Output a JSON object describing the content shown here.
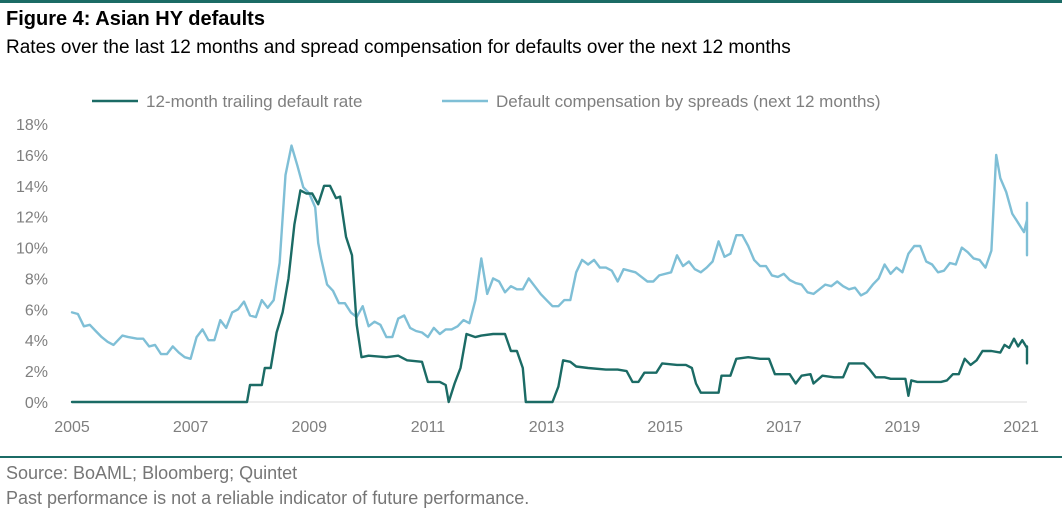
{
  "header": {
    "title": "Figure 4: Asian HY defaults",
    "subtitle": "Rates over the last 12 months and spread compensation for defaults over the next 12 months"
  },
  "footer": {
    "source": "Source: BoAML; Bloomberg; Quintet",
    "disclaimer": "Past performance is not a reliable indicator of future performance."
  },
  "colors": {
    "rule": "#1b6b65",
    "default_rate": "#1b6b65",
    "compensation": "#7fbfd6",
    "axis_text": "#7f7f7f",
    "baseline": "#d9d9d9"
  },
  "chart_data": {
    "type": "line",
    "xlim": [
      2005,
      2021.1
    ],
    "ylim": [
      0,
      18
    ],
    "x_ticks": [
      2005,
      2007,
      2009,
      2011,
      2013,
      2015,
      2017,
      2019,
      2021
    ],
    "x_tick_labels": [
      "2005",
      "2007",
      "2009",
      "2011",
      "2013",
      "2015",
      "2017",
      "2019",
      "2021"
    ],
    "y_ticks": [
      0,
      2,
      4,
      6,
      8,
      10,
      12,
      14,
      16,
      18
    ],
    "y_tick_labels": [
      "0%",
      "2%",
      "4%",
      "6%",
      "8%",
      "10%",
      "12%",
      "14%",
      "16%",
      "18%"
    ],
    "grid": false,
    "legend_position": "top",
    "series": [
      {
        "name": "12-month trailing default rate",
        "color": "#1b6b65",
        "points": [
          [
            2005.0,
            0
          ],
          [
            2007.95,
            0
          ],
          [
            2008.0,
            1.1
          ],
          [
            2008.2,
            1.1
          ],
          [
            2008.25,
            2.2
          ],
          [
            2008.35,
            2.2
          ],
          [
            2008.45,
            4.5
          ],
          [
            2008.55,
            5.8
          ],
          [
            2008.65,
            8.0
          ],
          [
            2008.75,
            11.5
          ],
          [
            2008.85,
            13.7
          ],
          [
            2008.95,
            13.5
          ],
          [
            2009.05,
            13.5
          ],
          [
            2009.15,
            12.8
          ],
          [
            2009.25,
            14.0
          ],
          [
            2009.35,
            14.0
          ],
          [
            2009.45,
            13.2
          ],
          [
            2009.52,
            13.3
          ],
          [
            2009.62,
            10.7
          ],
          [
            2009.72,
            9.5
          ],
          [
            2009.8,
            5.0
          ],
          [
            2009.88,
            2.9
          ],
          [
            2010.0,
            3.0
          ],
          [
            2010.3,
            2.9
          ],
          [
            2010.5,
            3.0
          ],
          [
            2010.65,
            2.7
          ],
          [
            2010.9,
            2.6
          ],
          [
            2011.0,
            1.3
          ],
          [
            2011.2,
            1.3
          ],
          [
            2011.3,
            1.1
          ],
          [
            2011.35,
            0
          ],
          [
            2011.45,
            1.2
          ],
          [
            2011.55,
            2.2
          ],
          [
            2011.65,
            4.4
          ],
          [
            2011.8,
            4.2
          ],
          [
            2011.9,
            4.3
          ],
          [
            2012.1,
            4.4
          ],
          [
            2012.3,
            4.4
          ],
          [
            2012.4,
            3.3
          ],
          [
            2012.5,
            3.3
          ],
          [
            2012.6,
            2.2
          ],
          [
            2012.65,
            0
          ],
          [
            2013.0,
            0
          ],
          [
            2013.1,
            0
          ],
          [
            2013.2,
            1.0
          ],
          [
            2013.28,
            2.7
          ],
          [
            2013.4,
            2.6
          ],
          [
            2013.5,
            2.3
          ],
          [
            2013.7,
            2.2
          ],
          [
            2014.0,
            2.1
          ],
          [
            2014.2,
            2.1
          ],
          [
            2014.35,
            2.0
          ],
          [
            2014.45,
            1.3
          ],
          [
            2014.55,
            1.3
          ],
          [
            2014.65,
            1.9
          ],
          [
            2014.85,
            1.9
          ],
          [
            2014.95,
            2.5
          ],
          [
            2015.2,
            2.4
          ],
          [
            2015.35,
            2.4
          ],
          [
            2015.45,
            2.2
          ],
          [
            2015.52,
            1.2
          ],
          [
            2015.6,
            0.6
          ],
          [
            2015.75,
            0.6
          ],
          [
            2015.9,
            0.6
          ],
          [
            2015.95,
            1.7
          ],
          [
            2016.1,
            1.7
          ],
          [
            2016.2,
            2.8
          ],
          [
            2016.4,
            2.9
          ],
          [
            2016.6,
            2.8
          ],
          [
            2016.75,
            2.8
          ],
          [
            2016.85,
            1.8
          ],
          [
            2017.0,
            1.8
          ],
          [
            2017.1,
            1.8
          ],
          [
            2017.2,
            1.2
          ],
          [
            2017.3,
            1.7
          ],
          [
            2017.45,
            1.8
          ],
          [
            2017.5,
            1.2
          ],
          [
            2017.65,
            1.7
          ],
          [
            2017.85,
            1.6
          ],
          [
            2018.0,
            1.6
          ],
          [
            2018.1,
            2.5
          ],
          [
            2018.25,
            2.5
          ],
          [
            2018.35,
            2.5
          ],
          [
            2018.45,
            2.1
          ],
          [
            2018.55,
            1.6
          ],
          [
            2018.7,
            1.6
          ],
          [
            2018.8,
            1.5
          ],
          [
            2018.95,
            1.5
          ],
          [
            2019.05,
            1.5
          ],
          [
            2019.1,
            0.4
          ],
          [
            2019.15,
            1.4
          ],
          [
            2019.25,
            1.3
          ],
          [
            2019.5,
            1.3
          ],
          [
            2019.65,
            1.3
          ],
          [
            2019.75,
            1.4
          ],
          [
            2019.85,
            1.8
          ],
          [
            2019.95,
            1.8
          ],
          [
            2020.05,
            2.8
          ],
          [
            2020.15,
            2.4
          ],
          [
            2020.25,
            2.7
          ],
          [
            2020.35,
            3.3
          ],
          [
            2020.5,
            3.3
          ],
          [
            2020.65,
            3.2
          ],
          [
            2020.72,
            3.7
          ],
          [
            2020.8,
            3.5
          ],
          [
            2020.88,
            4.1
          ],
          [
            2020.95,
            3.6
          ],
          [
            2021.02,
            4.0
          ],
          [
            2021.1,
            3.5
          ],
          [
            2021.2,
            3.6
          ],
          [
            2021.3,
            3.6
          ],
          [
            2021.4,
            2.6
          ],
          [
            2021.5,
            2.5
          ],
          [
            2021.58,
            2.5
          ]
        ]
      },
      {
        "name": "Default compensation by spreads (next 12 months)",
        "color": "#7fbfd6",
        "points": [
          [
            2005.0,
            5.8
          ],
          [
            2005.1,
            5.7
          ],
          [
            2005.2,
            4.9
          ],
          [
            2005.3,
            5.0
          ],
          [
            2005.4,
            4.6
          ],
          [
            2005.5,
            4.2
          ],
          [
            2005.6,
            3.9
          ],
          [
            2005.7,
            3.7
          ],
          [
            2005.85,
            4.3
          ],
          [
            2005.95,
            4.2
          ],
          [
            2006.1,
            4.1
          ],
          [
            2006.2,
            4.1
          ],
          [
            2006.3,
            3.6
          ],
          [
            2006.4,
            3.7
          ],
          [
            2006.5,
            3.1
          ],
          [
            2006.6,
            3.1
          ],
          [
            2006.7,
            3.6
          ],
          [
            2006.8,
            3.2
          ],
          [
            2006.9,
            2.9
          ],
          [
            2007.0,
            2.8
          ],
          [
            2007.1,
            4.2
          ],
          [
            2007.2,
            4.7
          ],
          [
            2007.3,
            4.0
          ],
          [
            2007.4,
            4.0
          ],
          [
            2007.5,
            5.3
          ],
          [
            2007.6,
            4.8
          ],
          [
            2007.7,
            5.8
          ],
          [
            2007.8,
            6.0
          ],
          [
            2007.9,
            6.5
          ],
          [
            2008.0,
            5.6
          ],
          [
            2008.1,
            5.5
          ],
          [
            2008.2,
            6.6
          ],
          [
            2008.3,
            6.1
          ],
          [
            2008.4,
            6.6
          ],
          [
            2008.5,
            9.0
          ],
          [
            2008.6,
            14.7
          ],
          [
            2008.7,
            16.6
          ],
          [
            2008.8,
            15.3
          ],
          [
            2008.9,
            13.9
          ],
          [
            2009.0,
            13.5
          ],
          [
            2009.1,
            12.6
          ],
          [
            2009.15,
            10.3
          ],
          [
            2009.2,
            9.3
          ],
          [
            2009.3,
            7.6
          ],
          [
            2009.4,
            7.2
          ],
          [
            2009.5,
            6.4
          ],
          [
            2009.6,
            6.4
          ],
          [
            2009.7,
            5.8
          ],
          [
            2009.8,
            5.5
          ],
          [
            2009.9,
            6.2
          ],
          [
            2010.0,
            4.9
          ],
          [
            2010.1,
            5.2
          ],
          [
            2010.2,
            5.0
          ],
          [
            2010.3,
            4.2
          ],
          [
            2010.4,
            4.2
          ],
          [
            2010.5,
            5.4
          ],
          [
            2010.6,
            5.6
          ],
          [
            2010.7,
            4.8
          ],
          [
            2010.8,
            4.6
          ],
          [
            2010.9,
            4.5
          ],
          [
            2011.0,
            4.2
          ],
          [
            2011.1,
            4.8
          ],
          [
            2011.2,
            4.4
          ],
          [
            2011.3,
            4.7
          ],
          [
            2011.4,
            4.7
          ],
          [
            2011.5,
            4.9
          ],
          [
            2011.6,
            5.3
          ],
          [
            2011.7,
            5.1
          ],
          [
            2011.8,
            6.6
          ],
          [
            2011.9,
            9.3
          ],
          [
            2012.0,
            7.0
          ],
          [
            2012.1,
            8.0
          ],
          [
            2012.2,
            7.8
          ],
          [
            2012.3,
            7.1
          ],
          [
            2012.4,
            7.5
          ],
          [
            2012.5,
            7.3
          ],
          [
            2012.6,
            7.3
          ],
          [
            2012.7,
            8.0
          ],
          [
            2012.8,
            7.5
          ],
          [
            2012.9,
            7.0
          ],
          [
            2013.0,
            6.6
          ],
          [
            2013.1,
            6.2
          ],
          [
            2013.2,
            6.2
          ],
          [
            2013.3,
            6.6
          ],
          [
            2013.4,
            6.6
          ],
          [
            2013.5,
            8.4
          ],
          [
            2013.6,
            9.2
          ],
          [
            2013.7,
            8.9
          ],
          [
            2013.8,
            9.2
          ],
          [
            2013.9,
            8.7
          ],
          [
            2014.0,
            8.7
          ],
          [
            2014.1,
            8.5
          ],
          [
            2014.2,
            7.8
          ],
          [
            2014.3,
            8.6
          ],
          [
            2014.5,
            8.4
          ],
          [
            2014.7,
            7.8
          ],
          [
            2014.8,
            7.8
          ],
          [
            2014.9,
            8.2
          ],
          [
            2015.1,
            8.4
          ],
          [
            2015.2,
            9.5
          ],
          [
            2015.3,
            8.8
          ],
          [
            2015.4,
            9.1
          ],
          [
            2015.5,
            8.6
          ],
          [
            2015.6,
            8.4
          ],
          [
            2015.7,
            8.7
          ],
          [
            2015.8,
            9.1
          ],
          [
            2015.9,
            10.4
          ],
          [
            2016.0,
            9.4
          ],
          [
            2016.1,
            9.6
          ],
          [
            2016.2,
            10.8
          ],
          [
            2016.3,
            10.8
          ],
          [
            2016.4,
            10.1
          ],
          [
            2016.5,
            9.2
          ],
          [
            2016.6,
            8.8
          ],
          [
            2016.7,
            8.8
          ],
          [
            2016.8,
            8.2
          ],
          [
            2016.9,
            8.1
          ],
          [
            2017.0,
            8.3
          ],
          [
            2017.1,
            7.9
          ],
          [
            2017.2,
            7.7
          ],
          [
            2017.3,
            7.6
          ],
          [
            2017.4,
            7.1
          ],
          [
            2017.5,
            7.0
          ],
          [
            2017.6,
            7.3
          ],
          [
            2017.7,
            7.6
          ],
          [
            2017.8,
            7.5
          ],
          [
            2017.9,
            7.8
          ],
          [
            2018.0,
            7.5
          ],
          [
            2018.1,
            7.3
          ],
          [
            2018.2,
            7.4
          ],
          [
            2018.3,
            6.9
          ],
          [
            2018.4,
            7.1
          ],
          [
            2018.5,
            7.6
          ],
          [
            2018.6,
            8.0
          ],
          [
            2018.7,
            8.9
          ],
          [
            2018.8,
            8.3
          ],
          [
            2018.9,
            8.7
          ],
          [
            2019.0,
            8.4
          ],
          [
            2019.1,
            9.6
          ],
          [
            2019.2,
            10.1
          ],
          [
            2019.3,
            10.1
          ],
          [
            2019.4,
            9.1
          ],
          [
            2019.5,
            8.9
          ],
          [
            2019.6,
            8.4
          ],
          [
            2019.7,
            8.5
          ],
          [
            2019.8,
            9.0
          ],
          [
            2019.9,
            8.9
          ],
          [
            2020.0,
            10.0
          ],
          [
            2020.1,
            9.7
          ],
          [
            2020.2,
            9.3
          ],
          [
            2020.3,
            9.2
          ],
          [
            2020.4,
            8.7
          ],
          [
            2020.5,
            9.8
          ],
          [
            2020.58,
            16.0
          ],
          [
            2020.65,
            14.5
          ],
          [
            2020.75,
            13.6
          ],
          [
            2020.85,
            12.2
          ],
          [
            2020.95,
            11.6
          ],
          [
            2021.05,
            11.0
          ],
          [
            2021.15,
            11.8
          ],
          [
            2021.25,
            11.3
          ],
          [
            2021.35,
            10.4
          ],
          [
            2021.45,
            10.3
          ],
          [
            2021.55,
            9.8
          ],
          [
            2021.65,
            9.6
          ],
          [
            2021.8,
            9.5
          ],
          [
            2021.9,
            10.3
          ],
          [
            2022.0,
            12.1
          ],
          [
            2022.1,
            12.9
          ]
        ]
      }
    ]
  }
}
